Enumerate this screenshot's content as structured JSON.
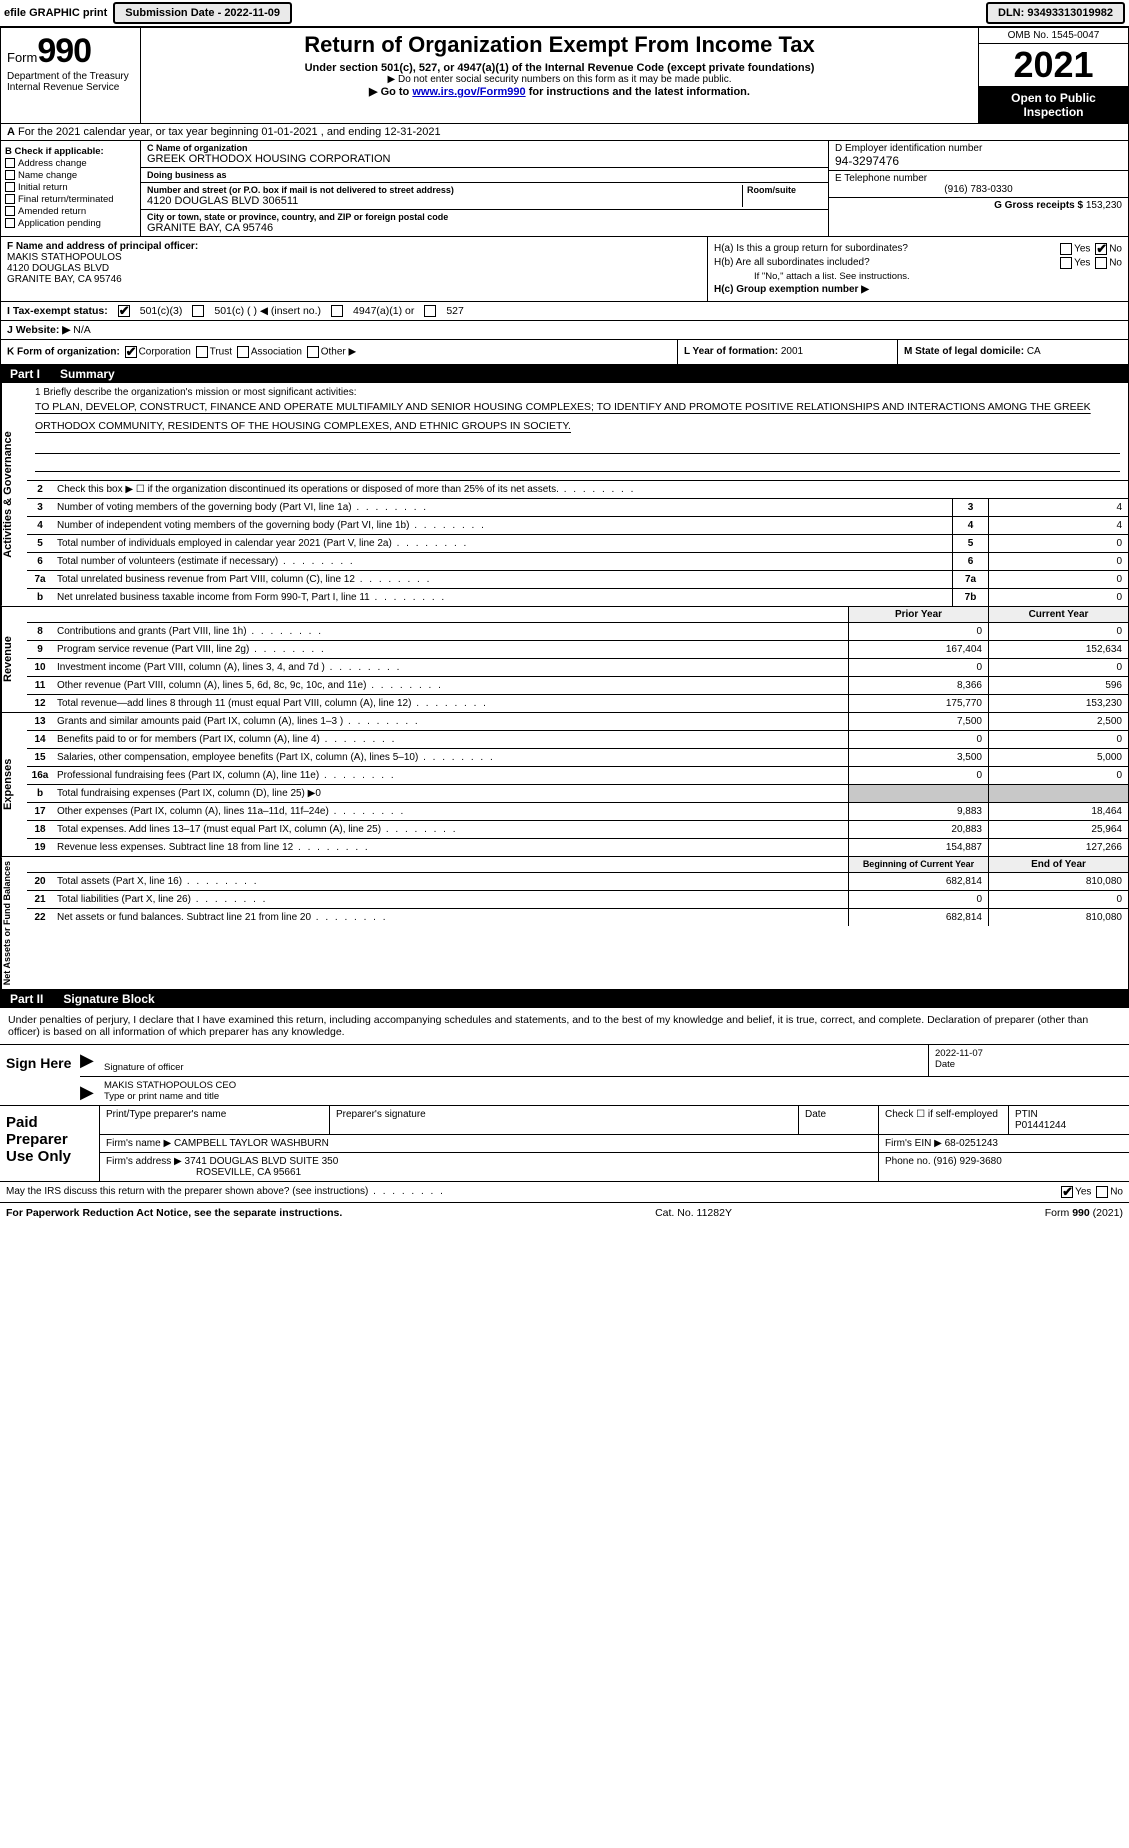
{
  "topbar": {
    "efile_label": "efile GRAPHIC print",
    "submission_label": "Submission Date - 2022-11-09",
    "dln_label": "DLN: 93493313019982"
  },
  "header": {
    "form_word": "Form",
    "form_number": "990",
    "title": "Return of Organization Exempt From Income Tax",
    "subtitle": "Under section 501(c), 527, or 4947(a)(1) of the Internal Revenue Code (except private foundations)",
    "note_ssn": "▶ Do not enter social security numbers on this form as it may be made public.",
    "goto_prefix": "▶ Go to ",
    "goto_link": "www.irs.gov/Form990",
    "goto_suffix": " for instructions and the latest information.",
    "dept": "Department of the Treasury\nInternal Revenue Service",
    "omb": "OMB No. 1545-0047",
    "year": "2021",
    "open_public": "Open to Public Inspection"
  },
  "line_a": "For the 2021 calendar year, or tax year beginning 01-01-2021   , and ending 12-31-2021",
  "block_b": {
    "label": "B Check if applicable:",
    "items": [
      "Address change",
      "Name change",
      "Initial return",
      "Final return/terminated",
      "Amended return",
      "Application pending"
    ]
  },
  "block_c": {
    "name_label": "C Name of organization",
    "name": "GREEK ORTHODOX HOUSING CORPORATION",
    "dba_label": "Doing business as",
    "addr_label": "Number and street (or P.O. box if mail is not delivered to street address)",
    "room_label": "Room/suite",
    "addr": "4120 DOUGLAS BLVD 306511",
    "city_label": "City or town, state or province, country, and ZIP or foreign postal code",
    "city": "GRANITE BAY, CA  95746"
  },
  "block_d": {
    "ein_label": "D Employer identification number",
    "ein": "94-3297476",
    "phone_label": "E Telephone number",
    "phone": "(916) 783-0330",
    "gross_label": "G Gross receipts $",
    "gross": "153,230"
  },
  "block_f": {
    "label": "F  Name and address of principal officer:",
    "name": "MAKIS STATHOPOULOS",
    "addr1": "4120 DOUGLAS BLVD",
    "addr2": "GRANITE BAY, CA  95746"
  },
  "block_h": {
    "a_label": "H(a) Is this a group return for subordinates?",
    "b_label": "H(b) Are all subordinates included?",
    "b_note": "If \"No,\" attach a list. See instructions.",
    "c_label": "H(c) Group exemption number ▶",
    "yes": "Yes",
    "no": "No"
  },
  "line_i": {
    "label": "I Tax-exempt status:",
    "o1": "501(c)(3)",
    "o2": "501(c) (  ) ◀ (insert no.)",
    "o3": "4947(a)(1) or",
    "o4": "527"
  },
  "line_j": {
    "label": "J Website: ▶",
    "value": "N/A"
  },
  "line_k": {
    "label": "K Form of organization:",
    "opts": [
      "Corporation",
      "Trust",
      "Association",
      "Other ▶"
    ]
  },
  "line_l": {
    "label": "L Year of formation:",
    "value": "2001"
  },
  "line_m": {
    "label": "M State of legal domicile:",
    "value": "CA"
  },
  "part1": {
    "num": "Part I",
    "title": "Summary"
  },
  "sidebars": {
    "gov": "Activities & Governance",
    "rev": "Revenue",
    "exp": "Expenses",
    "net": "Net Assets or Fund Balances"
  },
  "mission": {
    "label": "1 Briefly describe the organization's mission or most significant activities:",
    "text": "TO PLAN, DEVELOP, CONSTRUCT, FINANCE AND OPERATE MULTIFAMILY AND SENIOR HOUSING COMPLEXES; TO IDENTIFY AND PROMOTE POSITIVE RELATIONSHIPS AND INTERACTIONS AMONG THE GREEK ORTHODOX COMMUNITY, RESIDENTS OF THE HOUSING COMPLEXES, AND ETHNIC GROUPS IN SOCIETY."
  },
  "gov_rows": [
    {
      "n": "2",
      "t": "Check this box ▶ ☐ if the organization discontinued its operations or disposed of more than 25% of its net assets."
    },
    {
      "n": "3",
      "t": "Number of voting members of the governing body (Part VI, line 1a)",
      "box": "3",
      "val": "4"
    },
    {
      "n": "4",
      "t": "Number of independent voting members of the governing body (Part VI, line 1b)",
      "box": "4",
      "val": "4"
    },
    {
      "n": "5",
      "t": "Total number of individuals employed in calendar year 2021 (Part V, line 2a)",
      "box": "5",
      "val": "0"
    },
    {
      "n": "6",
      "t": "Total number of volunteers (estimate if necessary)",
      "box": "6",
      "val": "0"
    },
    {
      "n": "7a",
      "t": "Total unrelated business revenue from Part VIII, column (C), line 12",
      "box": "7a",
      "val": "0"
    },
    {
      "n": "b",
      "t": "Net unrelated business taxable income from Form 990-T, Part I, line 11",
      "box": "7b",
      "val": "0"
    }
  ],
  "col_headers": {
    "prior": "Prior Year",
    "current": "Current Year"
  },
  "rev_rows": [
    {
      "n": "8",
      "t": "Contributions and grants (Part VIII, line 1h)",
      "p": "0",
      "c": "0"
    },
    {
      "n": "9",
      "t": "Program service revenue (Part VIII, line 2g)",
      "p": "167,404",
      "c": "152,634"
    },
    {
      "n": "10",
      "t": "Investment income (Part VIII, column (A), lines 3, 4, and 7d )",
      "p": "0",
      "c": "0"
    },
    {
      "n": "11",
      "t": "Other revenue (Part VIII, column (A), lines 5, 6d, 8c, 9c, 10c, and 11e)",
      "p": "8,366",
      "c": "596"
    },
    {
      "n": "12",
      "t": "Total revenue—add lines 8 through 11 (must equal Part VIII, column (A), line 12)",
      "p": "175,770",
      "c": "153,230"
    }
  ],
  "exp_rows": [
    {
      "n": "13",
      "t": "Grants and similar amounts paid (Part IX, column (A), lines 1–3 )",
      "p": "7,500",
      "c": "2,500"
    },
    {
      "n": "14",
      "t": "Benefits paid to or for members (Part IX, column (A), line 4)",
      "p": "0",
      "c": "0"
    },
    {
      "n": "15",
      "t": "Salaries, other compensation, employee benefits (Part IX, column (A), lines 5–10)",
      "p": "3,500",
      "c": "5,000"
    },
    {
      "n": "16a",
      "t": "Professional fundraising fees (Part IX, column (A), line 11e)",
      "p": "0",
      "c": "0"
    },
    {
      "n": "b",
      "t": "Total fundraising expenses (Part IX, column (D), line 25) ▶0",
      "shade": true
    },
    {
      "n": "17",
      "t": "Other expenses (Part IX, column (A), lines 11a–11d, 11f–24e)",
      "p": "9,883",
      "c": "18,464"
    },
    {
      "n": "18",
      "t": "Total expenses. Add lines 13–17 (must equal Part IX, column (A), line 25)",
      "p": "20,883",
      "c": "25,964"
    },
    {
      "n": "19",
      "t": "Revenue less expenses. Subtract line 18 from line 12",
      "p": "154,887",
      "c": "127,266"
    }
  ],
  "net_headers": {
    "begin": "Beginning of Current Year",
    "end": "End of Year"
  },
  "net_rows": [
    {
      "n": "20",
      "t": "Total assets (Part X, line 16)",
      "p": "682,814",
      "c": "810,080"
    },
    {
      "n": "21",
      "t": "Total liabilities (Part X, line 26)",
      "p": "0",
      "c": "0"
    },
    {
      "n": "22",
      "t": "Net assets or fund balances. Subtract line 21 from line 20",
      "p": "682,814",
      "c": "810,080"
    }
  ],
  "part2": {
    "num": "Part II",
    "title": "Signature Block"
  },
  "penalties": "Under penalties of perjury, I declare that I have examined this return, including accompanying schedules and statements, and to the best of my knowledge and belief, it is true, correct, and complete. Declaration of preparer (other than officer) is based on all information of which preparer has any knowledge.",
  "sign": {
    "here": "Sign Here",
    "sig_label": "Signature of officer",
    "date_label": "Date",
    "date": "2022-11-07",
    "name_title": "MAKIS STATHOPOULOS CEO",
    "name_title_label": "Type or print name and title"
  },
  "prep": {
    "label": "Paid Preparer Use Only",
    "pt_name_label": "Print/Type preparer's name",
    "pt_sig_label": "Preparer's signature",
    "date_label": "Date",
    "check_label": "Check ☐ if self-employed",
    "ptin_label": "PTIN",
    "ptin": "P01441244",
    "firm_name_label": "Firm's name   ▶",
    "firm_name": "CAMPBELL TAYLOR WASHBURN",
    "firm_ein_label": "Firm's EIN ▶",
    "firm_ein": "68-0251243",
    "firm_addr_label": "Firm's address ▶",
    "firm_addr1": "3741 DOUGLAS BLVD SUITE 350",
    "firm_addr2": "ROSEVILLE, CA  95661",
    "phone_label": "Phone no.",
    "phone": "(916) 929-3680"
  },
  "discuss": {
    "text": "May the IRS discuss this return with the preparer shown above? (see instructions)",
    "yes": "Yes",
    "no": "No"
  },
  "footer": {
    "left": "For Paperwork Reduction Act Notice, see the separate instructions.",
    "mid": "Cat. No. 11282Y",
    "right": "Form 990 (2021)"
  },
  "colors": {
    "black": "#000000",
    "link": "#0000cc",
    "shade": "#c8c8c8",
    "hdr_bg": "#eeeeee"
  }
}
